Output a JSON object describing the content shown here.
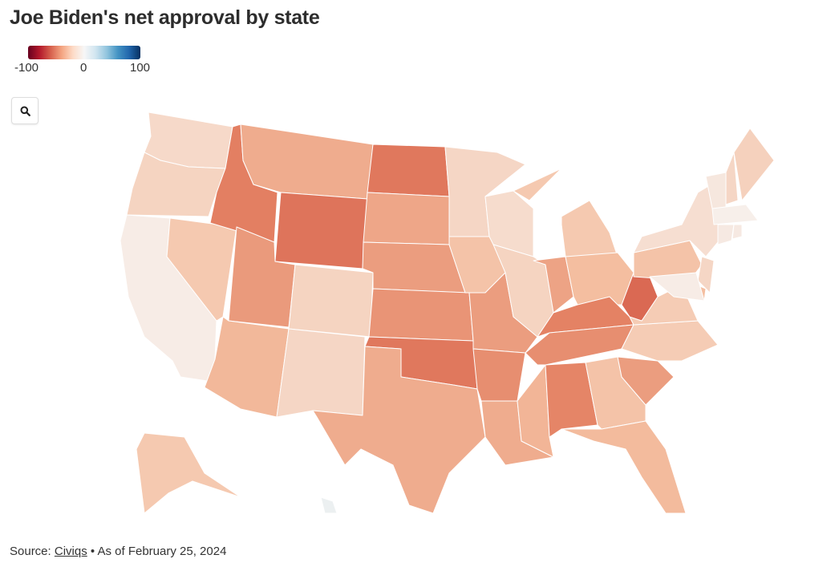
{
  "title": "Joe Biden's net approval by state",
  "legend": {
    "min_label": "-100",
    "mid_label": "0",
    "max_label": "100",
    "scale": "diverging red-white-blue",
    "min_color": "#67001f",
    "mid_color": "#f7f7f7",
    "max_color": "#053061"
  },
  "controls": {
    "zoom_icon": "search-icon"
  },
  "source": {
    "prefix": "Source:",
    "link": "Civiqs",
    "suffix": "• As of February 25, 2024"
  },
  "chart_data": {
    "type": "choropleth",
    "title": "Joe Biden's net approval by state",
    "scale_range": [
      -100,
      100
    ],
    "states": {
      "WA": -10,
      "OR": -12,
      "CA": -3,
      "NV": -16,
      "ID": -42,
      "MT": -26,
      "WY": -48,
      "UT": -32,
      "CO": -12,
      "AZ": -22,
      "NM": -11,
      "ND": -46,
      "SD": -28,
      "NE": -31,
      "KS": -34,
      "OK": -46,
      "TX": -26,
      "MN": -11,
      "IA": -18,
      "MO": -31,
      "AR": -36,
      "LA": -26,
      "WI": -9,
      "IL": -12,
      "MI": -16,
      "IN": -29,
      "OH": -20,
      "KY": -40,
      "TN": -36,
      "MS": -23,
      "AL": -39,
      "GA": -18,
      "FL": -21,
      "SC": -31,
      "NC": -15,
      "VA": -15,
      "WV": -55,
      "PA": -18,
      "NY": -8,
      "VT": -5,
      "NH": -11,
      "ME": -13,
      "MA": -2,
      "CT": -4,
      "RI": -4,
      "NJ": -11,
      "DE": -20,
      "MD": -3,
      "AK": -16,
      "HI": 6
    }
  }
}
